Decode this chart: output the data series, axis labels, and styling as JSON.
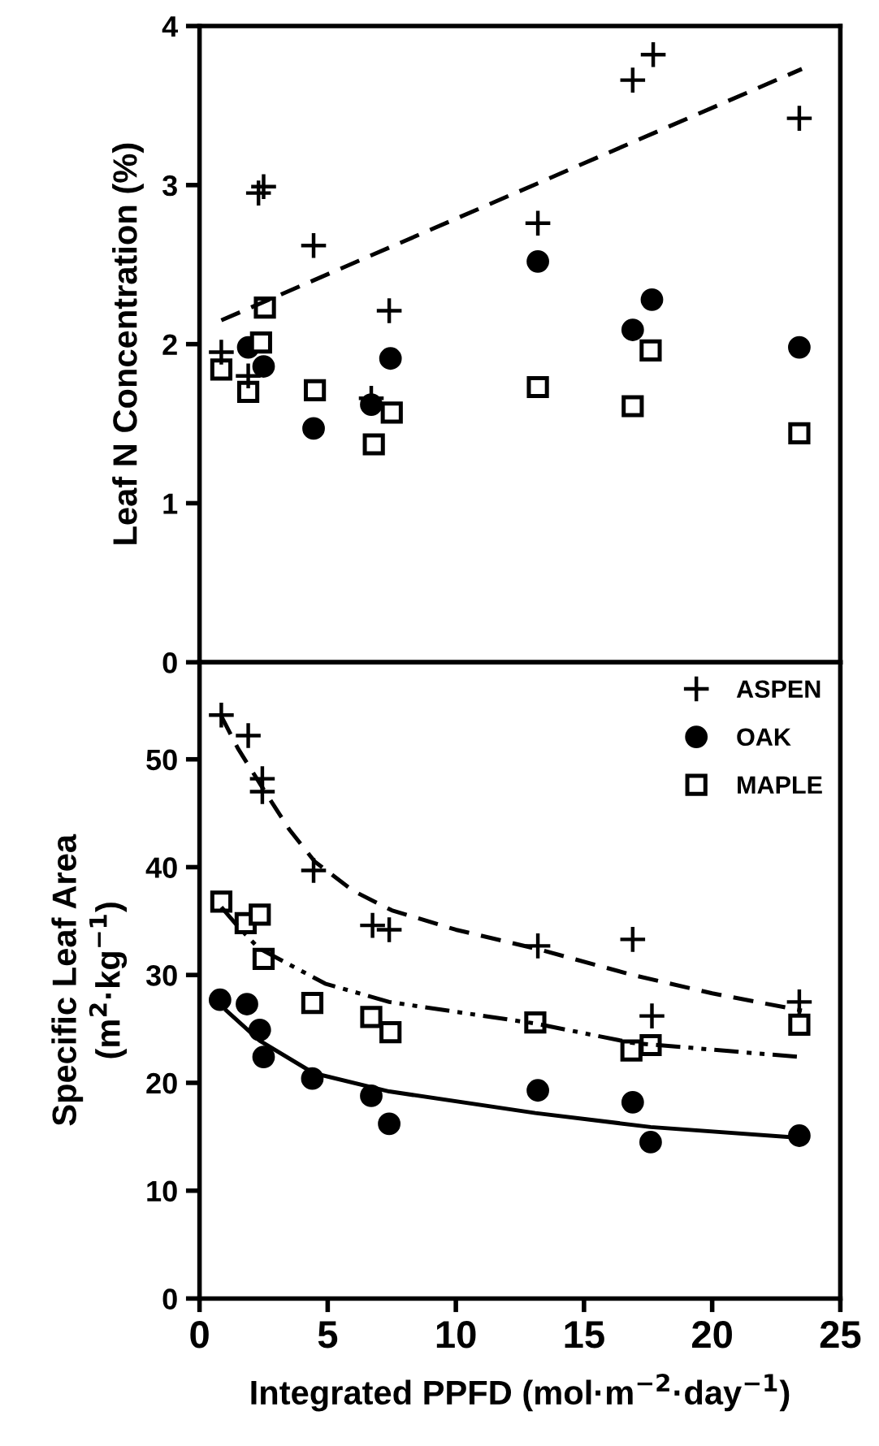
{
  "chart_data": [
    {
      "type": "scatter",
      "ylabel": "Leaf N Concentration (%)",
      "xlim": [
        0,
        25
      ],
      "ylim": [
        0,
        4
      ],
      "xticks": [
        0,
        5,
        10,
        15,
        20,
        25
      ],
      "yticks": [
        0,
        1,
        2,
        3,
        4
      ],
      "tick_labels": "y",
      "grid": false,
      "legend": false,
      "series": [
        {
          "marker": "cross",
          "color": "#000000",
          "x": [
            0.85,
            1.9,
            2.3,
            2.5,
            4.45,
            6.7,
            7.4,
            13.2,
            16.9,
            17.7,
            23.4
          ],
          "values": [
            1.95,
            1.8,
            2.95,
            2.99,
            2.62,
            1.66,
            2.21,
            2.76,
            3.66,
            3.82,
            3.42
          ]
        },
        {
          "marker": "circle",
          "color": "#000000",
          "x": [
            1.9,
            2.5,
            4.45,
            6.7,
            7.45,
            13.2,
            16.9,
            17.65,
            23.4
          ],
          "values": [
            1.98,
            1.86,
            1.47,
            1.62,
            1.91,
            2.52,
            2.09,
            2.28,
            1.98
          ]
        },
        {
          "marker": "square",
          "color": "#000000",
          "x": [
            0.85,
            1.9,
            2.4,
            2.55,
            4.5,
            6.8,
            7.5,
            13.2,
            16.9,
            17.6,
            23.4
          ],
          "values": [
            1.84,
            1.7,
            2.01,
            2.23,
            1.71,
            1.37,
            1.57,
            1.73,
            1.61,
            1.96,
            1.44
          ]
        },
        {
          "type": "line",
          "line_style": "dashed",
          "color": "#000000",
          "x": [
            0.85,
            23.5
          ],
          "values": [
            2.15,
            3.73
          ]
        }
      ]
    },
    {
      "type": "scatter",
      "ylabel": "Specific Leaf Area\n(m$^{2}$·kg$^{−1}$)",
      "xlabel": "Integrated PPFD (mol·m$^{−2}$·day$^{−1}$)",
      "xlim": [
        0,
        25
      ],
      "ylim": [
        0,
        59
      ],
      "xticks": [
        0,
        5,
        10,
        15,
        20,
        25
      ],
      "yticks": [
        0,
        10,
        20,
        30,
        40,
        50
      ],
      "grid": false,
      "legend": "top right",
      "series": [
        {
          "name": "ASPEN",
          "marker": "cross",
          "color": "#000000",
          "x": [
            0.85,
            1.9,
            2.45,
            2.45,
            4.45,
            6.75,
            7.4,
            13.2,
            16.9,
            17.65,
            23.4
          ],
          "values": [
            54.1,
            52.2,
            48.2,
            47.0,
            39.7,
            34.6,
            34.2,
            32.7,
            33.3,
            26.2,
            27.5
          ]
        },
        {
          "name": "OAK",
          "marker": "circle",
          "color": "#000000",
          "x": [
            0.8,
            1.85,
            2.35,
            2.5,
            4.4,
            6.7,
            7.4,
            13.2,
            16.9,
            17.6,
            23.4
          ],
          "values": [
            27.7,
            27.3,
            24.9,
            22.4,
            20.4,
            18.8,
            16.2,
            19.3,
            18.2,
            14.5,
            15.1
          ]
        },
        {
          "name": "MAPLE",
          "marker": "square",
          "color": "#000000",
          "x": [
            0.85,
            1.8,
            2.35,
            2.5,
            4.4,
            6.7,
            7.45,
            13.1,
            16.85,
            17.6,
            23.4
          ],
          "values": [
            36.8,
            34.8,
            35.6,
            31.5,
            27.4,
            26.1,
            24.7,
            25.6,
            23.0,
            23.5,
            25.4
          ]
        },
        {
          "type": "line",
          "line_style": "dashed",
          "color": "#000000",
          "x": [
            0.85,
            1.5,
            2.5,
            3.5,
            4.5,
            6,
            7.5,
            10,
            13.2,
            16.9,
            20,
            23.5
          ],
          "values": [
            54,
            51,
            47.2,
            43.5,
            40.5,
            37.8,
            36,
            34.2,
            32.4,
            30.0,
            28.3,
            26.7
          ]
        },
        {
          "type": "line",
          "line_style": "dotted",
          "color": "#000000",
          "x": [
            0.85,
            1.5,
            2.3,
            4.9,
            7.4,
            13.1,
            16.9,
            23.4
          ],
          "values": [
            36.3,
            34.5,
            32.5,
            29.2,
            27.5,
            25.5,
            23.7,
            22.4
          ]
        },
        {
          "type": "line",
          "line_style": "solid",
          "color": "#000000",
          "x": [
            1.05,
            2.35,
            4.45,
            7.4,
            13.1,
            17.6,
            23.4
          ],
          "values": [
            26.7,
            23.9,
            20.9,
            19.2,
            17.2,
            15.9,
            14.9
          ]
        }
      ]
    }
  ]
}
